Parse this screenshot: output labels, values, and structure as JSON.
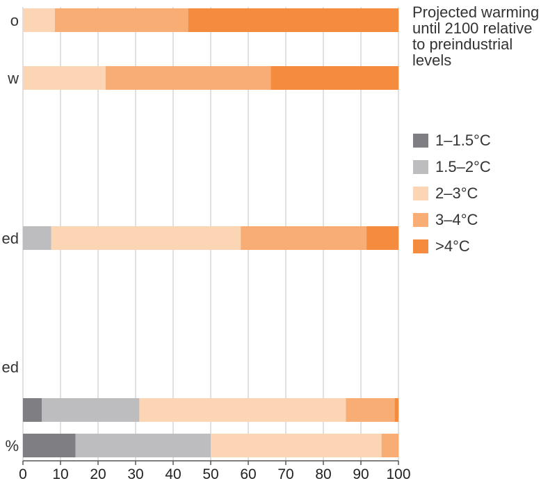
{
  "chart_data": {
    "type": "bar",
    "orientation": "horizontal",
    "stacked": true,
    "categories": [
      "o",
      "w",
      "ed",
      "ed",
      "",
      "%"
    ],
    "series": [
      {
        "name": "1–1.5°C",
        "color": "#7f7f83",
        "values": [
          0,
          0,
          0,
          0,
          5,
          14
        ]
      },
      {
        "name": "1.5–2°C",
        "color": "#bdbdc0",
        "values": [
          0,
          0,
          7.5,
          0,
          26,
          36
        ]
      },
      {
        "name": "2–3°C",
        "color": "#fcd5b5",
        "values": [
          8.5,
          22,
          50.5,
          0,
          55,
          45.5
        ]
      },
      {
        "name": "3–4°C",
        "color": "#f7ad74",
        "values": [
          35.5,
          44,
          33.5,
          0,
          13,
          4.5
        ]
      },
      {
        "name": ">4°C",
        "color": "#f48b3e",
        "values": [
          56,
          34,
          8.5,
          0,
          1,
          0
        ]
      }
    ],
    "x_ticks": [
      "0",
      "10",
      "20",
      "30",
      "40",
      "50",
      "60",
      "70",
      "80",
      "90",
      "100"
    ],
    "xlim": [
      0,
      100
    ],
    "grid": "vertical",
    "legend": {
      "title": "Projected warming until 2100 relative to preindustrial levels",
      "placement": "right"
    }
  }
}
